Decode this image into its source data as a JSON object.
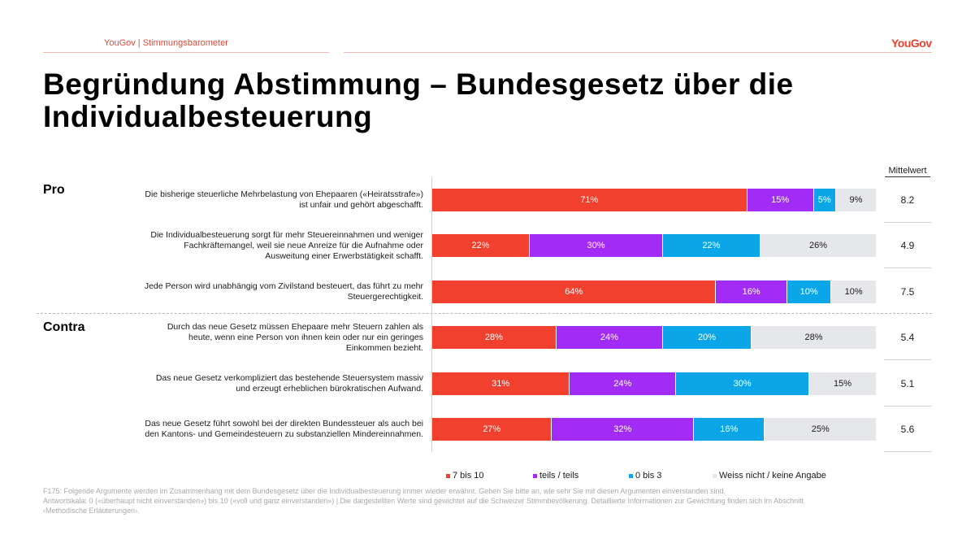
{
  "header": {
    "source_label": "YouGov | Stimmungsbarometer",
    "logo": "YouGov"
  },
  "title": "Begründung Abstimmung – Bundesgesetz über die Individualbesteuerung",
  "sections": {
    "pro": "Pro",
    "contra": "Contra"
  },
  "mean_header": "Mittelwert",
  "colors": {
    "7 bis 10": "#f2402e",
    "teils / teils": "#a22cf5",
    "0 bis 3": "#0aa6e8",
    "Weiss nicht / keine Angabe": "#e6e7ea"
  },
  "chart_data": {
    "type": "bar",
    "orientation": "horizontal-stacked-100",
    "title": "Begründung Abstimmung – Bundesgesetz über die Individualbesteuerung",
    "xlabel": "",
    "ylabel": "",
    "xlim": [
      0,
      100
    ],
    "unit": "%",
    "legend_position": "bottom",
    "categories": [
      "Die bisherige steuerliche Mehrbelastung von Ehepaaren («Heiratsstrafe») ist unfair und gehört abgeschafft.",
      "Die Individualbesteuerung sorgt für mehr Steuereinnahmen und weniger Fachkräftemangel, weil sie neue Anreize für die Aufnahme oder Ausweitung einer Erwerbstätigkeit schafft.",
      "Jede Person wird unabhängig vom Zivilstand besteuert, das führt zu mehr Steuergerechtigkeit.",
      "Durch das neue Gesetz müssen Ehepaare mehr Steuern zahlen als heute, wenn eine Person von ihnen kein oder nur ein geringes Einkommen bezieht.",
      "Das neue Gesetz verkompliziert das bestehende Steuersystem massiv und erzeugt erheblichen bürokratischen Aufwand.",
      "Das neue Gesetz führt sowohl bei der direkten Bundessteuer als auch bei den Kantons- und Gemeindesteuern zu substanziellen Mindereinnahmen."
    ],
    "category_lines": [
      [
        "Die bisherige steuerliche Mehrbelastung von Ehepaaren («Heiratsstrafe»)",
        "ist unfair und gehört abgeschafft."
      ],
      [
        "Die Individualbesteuerung sorgt für mehr Steuereinnahmen und weniger",
        "Fachkräftemangel, weil sie neue Anreize für die Aufnahme oder",
        "Ausweitung einer Erwerbstätigkeit schafft."
      ],
      [
        "Jede Person wird unabhängig vom Zivilstand besteuert, das führt zu mehr",
        "Steuergerechtigkeit."
      ],
      [
        "Durch das neue Gesetz müssen Ehepaare mehr Steuern zahlen als",
        "heute, wenn eine Person von ihnen kein oder nur ein geringes",
        "Einkommen bezieht."
      ],
      [
        "Das neue Gesetz verkompliziert das bestehende Steuersystem massiv",
        "und erzeugt erheblichen bürokratischen Aufwand."
      ],
      [
        "Das neue Gesetz führt sowohl bei der direkten Bundessteuer als auch bei",
        "den Kantons- und Gemeindesteuern zu substanziellen Mindereinnahmen."
      ]
    ],
    "groups": [
      "Pro",
      "Pro",
      "Pro",
      "Contra",
      "Contra",
      "Contra"
    ],
    "series": [
      {
        "name": "7 bis 10",
        "values": [
          71,
          22,
          64,
          28,
          31,
          27
        ]
      },
      {
        "name": "teils / teils",
        "values": [
          15,
          30,
          16,
          24,
          24,
          32
        ]
      },
      {
        "name": "0 bis 3",
        "values": [
          5,
          22,
          10,
          20,
          30,
          16
        ]
      },
      {
        "name": "Weiss nicht / keine Angabe",
        "values": [
          9,
          26,
          10,
          28,
          15,
          25
        ]
      }
    ],
    "mean_values": [
      "8.2",
      "4.9",
      "7.5",
      "5.4",
      "5.1",
      "5.6"
    ],
    "legend": [
      "7 bis 10",
      "teils / teils",
      "0 bis 3",
      "Weiss nicht / keine Angabe"
    ]
  },
  "footnote": [
    "F175: Folgende Argumente werden im Zusammenhang mit dem Bundesgesetz über die Individualbesteuerung immer wieder erwähnt. Geben Sie bitte an, wie sehr Sie mit diesen Argumenten einverstanden sind.",
    "Antwortskala: 0 («überhaupt nicht einverstanden») bis 10 («voll und ganz einverstanden») | Die dargestellten Werte sind gewichtet auf die Schweizer Stimmbevölkerung. Detaillierte Informationen zur Gewichtung finden sich im Abschnitt",
    "‹Methodische Erläuterungen›."
  ]
}
